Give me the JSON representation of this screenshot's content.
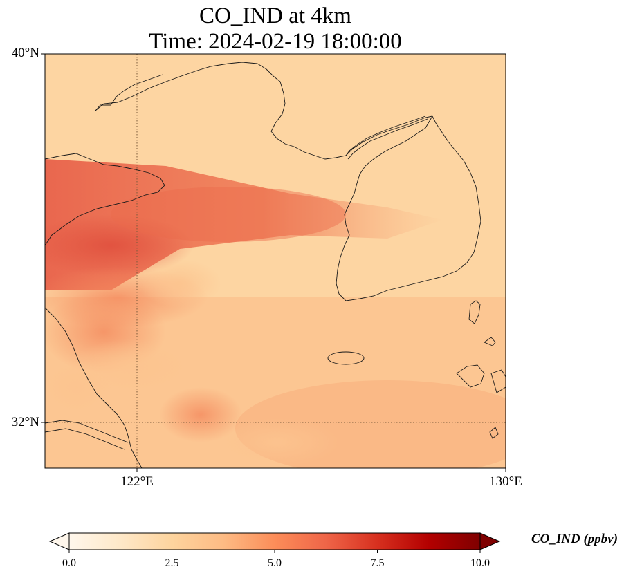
{
  "title": {
    "line1": "CO_IND at 4km",
    "line2": "Time: 2024-02-19 18:00:00"
  },
  "axes": {
    "lat_ticks": [
      "40°N",
      "32°N"
    ],
    "lon_ticks": [
      "122°E",
      "130°E"
    ]
  },
  "colorbar": {
    "label": "CO_IND (ppbv)",
    "ticks": [
      "0.0",
      "2.5",
      "5.0",
      "7.5",
      "10.0"
    ],
    "colormap": "OrRd",
    "extend": "both",
    "colors": [
      "#fff7ec",
      "#fee8c8",
      "#fdd49e",
      "#fdbb84",
      "#fc8d59",
      "#ef6548",
      "#d7301f",
      "#b30000",
      "#7f0000"
    ]
  },
  "map": {
    "extent_lon": [
      120,
      130
    ],
    "extent_lat": [
      31,
      40
    ],
    "gridlines": "dotted"
  }
}
